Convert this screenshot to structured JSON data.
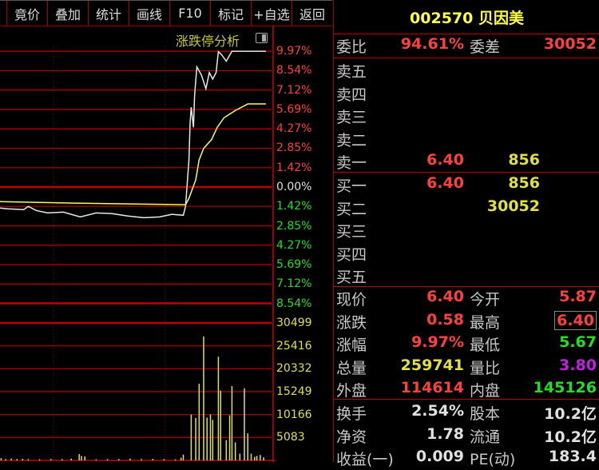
{
  "toolbar": {
    "buttons": [
      "竟价",
      "叠加",
      "统计",
      "画线",
      "F10",
      "标记",
      "+自选",
      "返回"
    ]
  },
  "chart": {
    "region_title": "涨跌停分析",
    "toggle_icon": "panel-toggle-icon"
  },
  "chart_data": {
    "type": "line",
    "price_axis_labels": [
      "9.97%",
      "8.54%",
      "7.12%",
      "5.69%",
      "4.27%",
      "2.85%",
      "1.42%",
      "0.00%",
      "1.42%",
      "2.85%",
      "4.27%",
      "5.69%",
      "7.12%",
      "8.54%"
    ],
    "price_axis_values": [
      9.97,
      8.54,
      7.12,
      5.69,
      4.27,
      2.85,
      1.42,
      0,
      -1.42,
      -2.85,
      -4.27,
      -5.69,
      -7.12,
      -8.54
    ],
    "volume_axis_labels": [
      "30499",
      "25416",
      "20332",
      "15249",
      "10166",
      "5083"
    ],
    "volume_axis_values": [
      30499,
      25416,
      20332,
      15249,
      10166,
      5083
    ],
    "x_range_minutes": [
      0,
      240
    ],
    "price_series": [
      [
        0,
        -1.54
      ],
      [
        7,
        -1.6
      ],
      [
        21,
        -1.66
      ],
      [
        25,
        -1.42
      ],
      [
        32,
        -1.72
      ],
      [
        42,
        -1.9
      ],
      [
        56,
        -1.84
      ],
      [
        71,
        -2.19
      ],
      [
        85,
        -1.9
      ],
      [
        99,
        -1.95
      ],
      [
        113,
        -2.13
      ],
      [
        127,
        -2.25
      ],
      [
        141,
        -2.19
      ],
      [
        152,
        -2.0
      ],
      [
        162,
        -2.07
      ],
      [
        164,
        -1.42
      ],
      [
        167,
        2.0
      ],
      [
        168,
        4.68
      ],
      [
        169,
        5.86
      ],
      [
        171,
        4.38
      ],
      [
        172,
        6.75
      ],
      [
        174,
        8.82
      ],
      [
        178,
        8.23
      ],
      [
        182,
        7.22
      ],
      [
        185,
        8.4
      ],
      [
        188,
        7.93
      ],
      [
        191,
        8.4
      ],
      [
        193,
        9.94
      ],
      [
        196,
        9.7
      ],
      [
        200,
        9.24
      ],
      [
        205,
        9.97
      ],
      [
        235,
        9.97
      ]
    ],
    "avg_series": [
      [
        0,
        -1.07
      ],
      [
        66,
        -1.18
      ],
      [
        164,
        -1.3
      ],
      [
        167,
        -0.83
      ],
      [
        173,
        0.53
      ],
      [
        176,
        2.0
      ],
      [
        180,
        2.84
      ],
      [
        187,
        3.49
      ],
      [
        192,
        4.38
      ],
      [
        198,
        5.09
      ],
      [
        208,
        5.62
      ],
      [
        219,
        6.1
      ],
      [
        235,
        6.1
      ]
    ],
    "volume_series": [
      [
        1,
        500
      ],
      [
        5,
        300
      ],
      [
        10,
        400
      ],
      [
        15,
        300
      ],
      [
        20,
        350
      ],
      [
        25,
        300
      ],
      [
        35,
        250
      ],
      [
        45,
        300
      ],
      [
        55,
        300
      ],
      [
        63,
        400
      ],
      [
        70,
        1400
      ],
      [
        72,
        1000
      ],
      [
        75,
        900
      ],
      [
        85,
        250
      ],
      [
        95,
        300
      ],
      [
        105,
        300
      ],
      [
        115,
        400
      ],
      [
        125,
        300
      ],
      [
        135,
        350
      ],
      [
        145,
        300
      ],
      [
        155,
        250
      ],
      [
        160,
        600
      ],
      [
        162,
        1300
      ],
      [
        169,
        10166
      ],
      [
        173,
        9400
      ],
      [
        176,
        17000
      ],
      [
        180,
        27500
      ],
      [
        183,
        9500
      ],
      [
        186,
        10200
      ],
      [
        188,
        9000
      ],
      [
        193,
        23000
      ],
      [
        195,
        15500
      ],
      [
        200,
        4500
      ],
      [
        203,
        10000
      ],
      [
        205,
        16500
      ],
      [
        208,
        4000
      ],
      [
        212,
        1500
      ],
      [
        216,
        16000
      ],
      [
        219,
        6000
      ],
      [
        222,
        1500
      ],
      [
        225,
        800
      ],
      [
        227,
        1000
      ],
      [
        230,
        1200
      ],
      [
        233,
        700
      ]
    ],
    "colors": {
      "price": "#e8e8e8",
      "avg": "#ffff40",
      "volume": "#e0e060",
      "grid": "#c00000"
    }
  },
  "panel": {
    "title": "002570 贝因美",
    "weibi": {
      "label": "委比",
      "value": "94.61%",
      "label2": "委差",
      "value2": "30052"
    },
    "asks": [
      {
        "label": "卖五",
        "price": "",
        "vol": ""
      },
      {
        "label": "卖四",
        "price": "",
        "vol": ""
      },
      {
        "label": "卖三",
        "price": "",
        "vol": ""
      },
      {
        "label": "卖二",
        "price": "",
        "vol": ""
      },
      {
        "label": "卖一",
        "price": "6.40",
        "vol": "856"
      }
    ],
    "bids": [
      {
        "label": "买一",
        "price": "6.40",
        "vol": "856"
      },
      {
        "label": "买二",
        "price": "",
        "vol": "30052"
      },
      {
        "label": "买三",
        "price": "",
        "vol": ""
      },
      {
        "label": "买四",
        "price": "",
        "vol": ""
      },
      {
        "label": "买五",
        "price": "",
        "vol": ""
      }
    ],
    "stats": [
      {
        "l1": "现价",
        "v1": "6.40",
        "c1": "red",
        "l2": "今开",
        "v2": "5.87",
        "c2": "red"
      },
      {
        "l1": "涨跌",
        "v1": "0.58",
        "c1": "red",
        "l2": "最高",
        "v2": "6.40",
        "c2": "red boxed"
      },
      {
        "l1": "涨幅",
        "v1": "9.97%",
        "c1": "red",
        "l2": "最低",
        "v2": "5.67",
        "c2": "green"
      },
      {
        "l1": "总量",
        "v1": "259741",
        "c1": "yellow",
        "l2": "量比",
        "v2": "3.80",
        "c2": "purple"
      },
      {
        "l1": "外盘",
        "v1": "114614",
        "c1": "red",
        "l2": "内盘",
        "v2": "145126",
        "c2": "green"
      }
    ],
    "finance": [
      {
        "l1": "换手",
        "v1": "2.54%",
        "l2": "股本",
        "v2": "10.2亿"
      },
      {
        "l1": "净资",
        "v1": "1.78",
        "l2": "流通",
        "v2": "10.2亿"
      },
      {
        "l1": "收益(一)",
        "v1": "0.009",
        "l2": "PE(动)",
        "v2": "183.4"
      }
    ]
  }
}
